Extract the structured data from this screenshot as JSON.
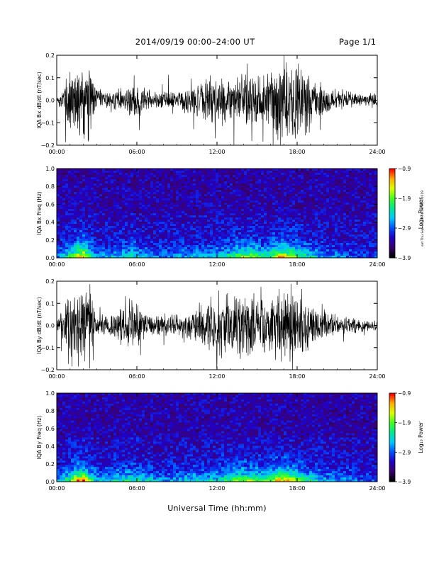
{
  "header": {
    "title": "2014/09/19   00:00–24:00 UT",
    "page": "Page 1/1"
  },
  "footer": {
    "xlabel": "Universal Time (hh:mm)",
    "stamp": "ext Thu Sep 18 18:06:08 EDT 2019"
  },
  "colors": {
    "trace": "#000000",
    "frame": "#000000",
    "colormap": [
      "#000000",
      "#3a0070",
      "#2000c8",
      "#0050ff",
      "#00c8ff",
      "#00e890",
      "#40ff20",
      "#d8ff00",
      "#ffb000",
      "#ff0000"
    ]
  },
  "chart_data": [
    {
      "type": "line",
      "ylabel": "IQA Bx dB/dt (nT/sec)",
      "ylim": [
        -0.2,
        0.2
      ],
      "y_ticks": [
        "0.2",
        "0.1",
        "0.0",
        "−0.1",
        "−0.2"
      ],
      "x_ticks": [
        "00:00",
        "06:00",
        "12:00",
        "18:00",
        "24:00"
      ],
      "xlim_hours": [
        0,
        24
      ],
      "series": [
        {
          "x_hours": [
            0,
            0.5,
            1,
            1.5,
            2,
            2.5,
            3,
            3.5,
            4,
            4.5,
            5,
            5.5,
            6,
            6.5,
            7,
            7.5,
            8,
            8.5,
            9,
            9.5,
            10,
            10.5,
            11,
            11.5,
            12,
            12.5,
            13,
            13.5,
            14,
            14.5,
            15,
            15.5,
            16,
            16.5,
            17,
            17.5,
            18,
            18.5,
            19,
            19.5,
            20,
            20.5,
            21,
            21.5,
            22,
            22.5,
            23,
            23.5,
            24
          ],
          "amplitude": [
            0.02,
            0.06,
            0.2,
            0.2,
            0.2,
            0.2,
            0.06,
            0.05,
            0.04,
            0.06,
            0.05,
            0.09,
            0.09,
            0.06,
            0.04,
            0.05,
            0.06,
            0.05,
            0.04,
            0.06,
            0.07,
            0.09,
            0.1,
            0.12,
            0.12,
            0.12,
            0.11,
            0.12,
            0.13,
            0.2,
            0.16,
            0.14,
            0.17,
            0.2,
            0.2,
            0.2,
            0.2,
            0.14,
            0.12,
            0.1,
            0.09,
            0.07,
            0.06,
            0.05,
            0.04,
            0.035,
            0.03,
            0.03,
            0.03
          ]
        }
      ]
    },
    {
      "type": "heatmap",
      "ylabel": "IQA Bx Freq (Hz)",
      "ylim": [
        0.0,
        1.0
      ],
      "y_ticks": [
        "1.0",
        "0.8",
        "0.6",
        "0.4",
        "0.2",
        "0.0"
      ],
      "x_ticks": [
        "00:00",
        "06:00",
        "12:00",
        "18:00",
        "24:00"
      ],
      "colorbar": {
        "label": "Log₁₀ Power",
        "ticks": [
          "−0.9",
          "−1.9",
          "−2.9",
          "−3.9"
        ],
        "range": [
          -3.9,
          -0.9
        ]
      },
      "activity_hours": [
        0,
        1,
        1.5,
        2,
        2.5,
        3,
        5,
        5.5,
        8,
        11,
        12,
        13,
        14,
        14.5,
        15,
        16,
        16.5,
        17,
        17.5,
        18,
        19,
        20,
        24
      ],
      "activity_level": [
        0.15,
        0.5,
        0.8,
        0.85,
        0.5,
        0.25,
        0.35,
        0.4,
        0.2,
        0.3,
        0.35,
        0.45,
        0.6,
        0.6,
        0.5,
        0.5,
        0.75,
        0.75,
        0.7,
        0.55,
        0.4,
        0.25,
        0.1
      ]
    },
    {
      "type": "line",
      "ylabel": "IQA By dB/dt (nT/sec)",
      "ylim": [
        -0.2,
        0.2
      ],
      "y_ticks": [
        "0.2",
        "0.1",
        "0.0",
        "−0.1",
        "−0.2"
      ],
      "x_ticks": [
        "00:00",
        "06:00",
        "12:00",
        "18:00",
        "24:00"
      ],
      "xlim_hours": [
        0,
        24
      ],
      "series": [
        {
          "x_hours": [
            0,
            0.5,
            1,
            1.5,
            2,
            2.5,
            3,
            3.5,
            4,
            4.5,
            5,
            5.5,
            6,
            6.5,
            7,
            7.5,
            8,
            8.5,
            9,
            9.5,
            10,
            10.5,
            11,
            11.5,
            12,
            12.5,
            13,
            13.5,
            14,
            14.5,
            15,
            15.5,
            16,
            16.5,
            17,
            17.5,
            18,
            18.5,
            19,
            19.5,
            20,
            20.5,
            21,
            21.5,
            22,
            22.5,
            23,
            23.5,
            24
          ],
          "amplitude": [
            0.03,
            0.08,
            0.2,
            0.2,
            0.2,
            0.2,
            0.05,
            0.05,
            0.06,
            0.09,
            0.1,
            0.15,
            0.11,
            0.08,
            0.05,
            0.06,
            0.07,
            0.06,
            0.05,
            0.06,
            0.07,
            0.08,
            0.11,
            0.16,
            0.2,
            0.17,
            0.14,
            0.17,
            0.2,
            0.2,
            0.15,
            0.13,
            0.14,
            0.2,
            0.2,
            0.2,
            0.16,
            0.13,
            0.11,
            0.09,
            0.08,
            0.07,
            0.06,
            0.05,
            0.04,
            0.04,
            0.03,
            0.03,
            0.03
          ]
        }
      ]
    },
    {
      "type": "heatmap",
      "ylabel": "IQA By Freq (Hz)",
      "ylim": [
        0.0,
        1.0
      ],
      "y_ticks": [
        "1.0",
        "0.8",
        "0.6",
        "0.4",
        "0.2",
        "0.0"
      ],
      "x_ticks": [
        "00:00",
        "06:00",
        "12:00",
        "18:00",
        "24:00"
      ],
      "colorbar": {
        "label": "Log₁₀ Power",
        "ticks": [
          "−0.9",
          "−1.9",
          "−2.9",
          "−3.9"
        ],
        "range": [
          -3.9,
          -0.9
        ]
      },
      "activity_hours": [
        0,
        1,
        1.5,
        2,
        2.5,
        3,
        5,
        5.5,
        8,
        11,
        12,
        13,
        14,
        14.5,
        15,
        16,
        16.5,
        17,
        17.5,
        18,
        19,
        20,
        24
      ],
      "activity_level": [
        0.2,
        0.6,
        0.85,
        0.9,
        0.55,
        0.3,
        0.4,
        0.45,
        0.25,
        0.35,
        0.4,
        0.5,
        0.65,
        0.65,
        0.55,
        0.55,
        0.8,
        0.8,
        0.75,
        0.6,
        0.45,
        0.3,
        0.12
      ]
    }
  ]
}
